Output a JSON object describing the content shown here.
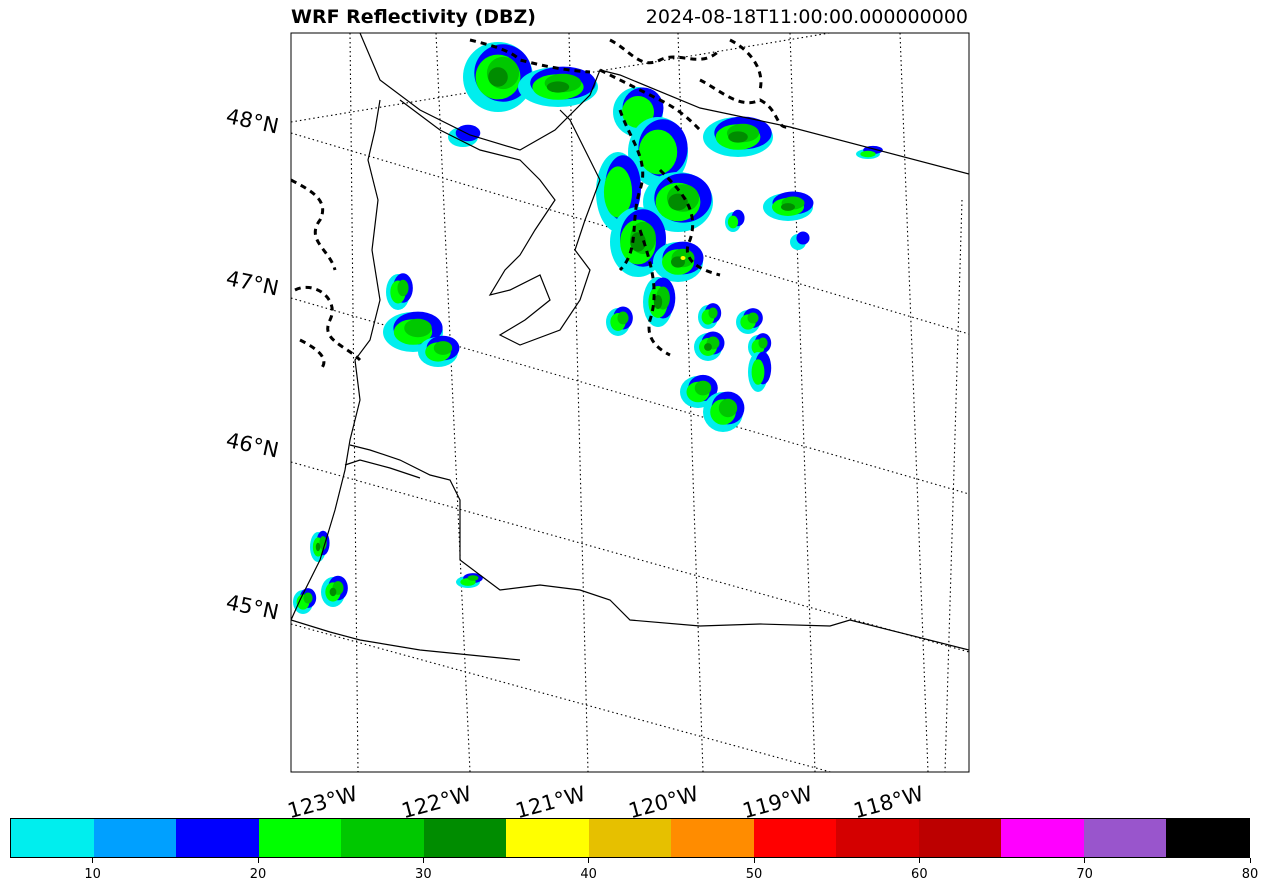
{
  "title": "WRF Reflectivity (DBZ)",
  "timestamp": "2024-08-18T11:00:00.000000000",
  "lat_labels": [
    "48°N",
    "47°N",
    "46°N",
    "45°N"
  ],
  "lon_labels": [
    "123°W",
    "122°W",
    "121°W",
    "120°W",
    "119°W",
    "118°W"
  ],
  "colorbar": {
    "min": 5,
    "max": 80,
    "ticks": [
      "10",
      "20",
      "30",
      "40",
      "50",
      "60",
      "70",
      "80"
    ],
    "colors": [
      "#00eeee",
      "#00a0ff",
      "#0000ff",
      "#00ff00",
      "#00c800",
      "#008c00",
      "#ffff00",
      "#e6c000",
      "#ff8c00",
      "#ff0000",
      "#d40000",
      "#bc0000",
      "#ff00ff",
      "#9955cc",
      "#000000"
    ]
  },
  "map_colors": {
    "frame": "#000000",
    "coast": "#000000",
    "grid": "#000000"
  }
}
